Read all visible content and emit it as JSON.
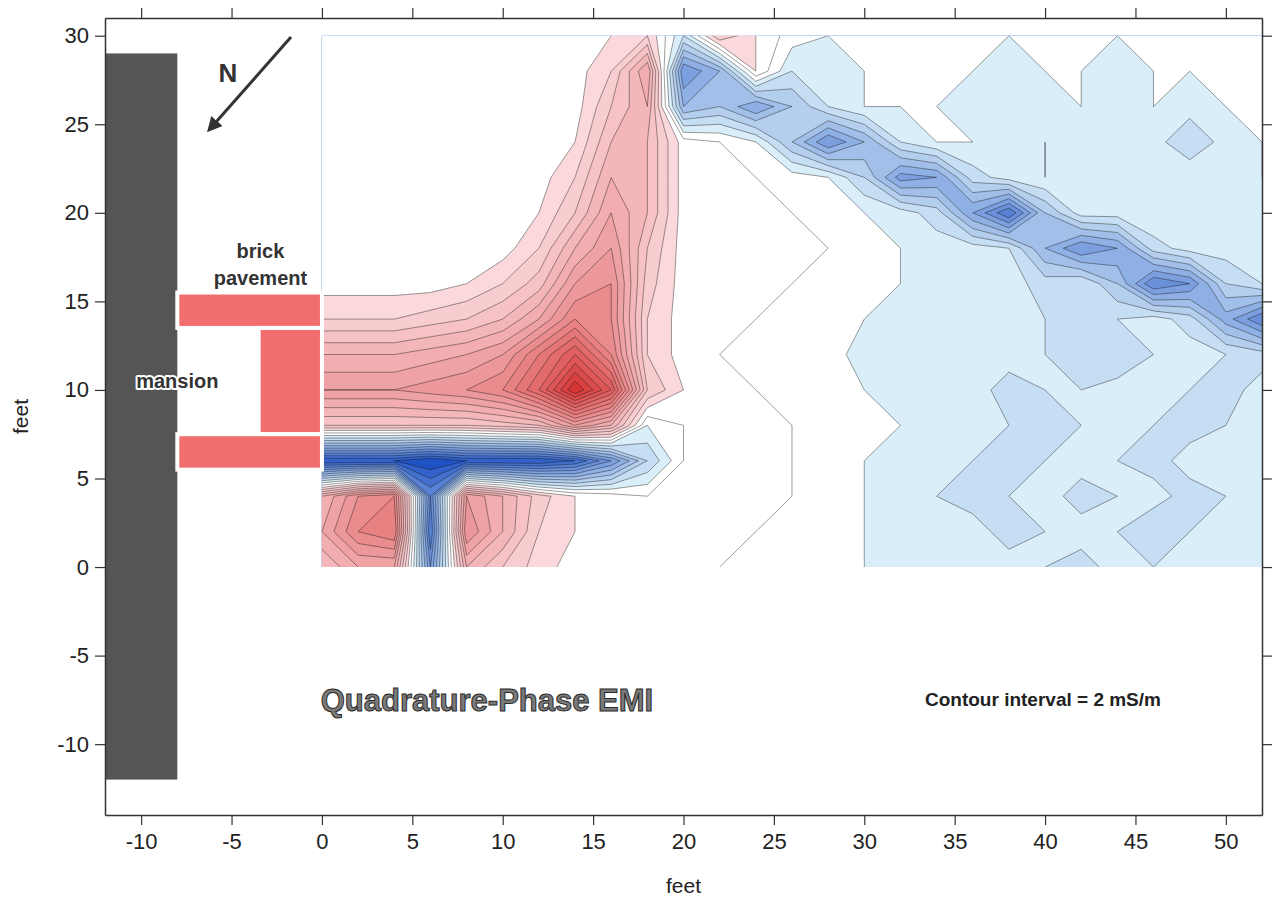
{
  "chart_data": {
    "type": "contour",
    "title": "Quadrature-Phase EMI",
    "annotations": [
      "Contour interval = 2 mS/m"
    ],
    "north_label": "N",
    "x_label": "feet",
    "y_label": "feet",
    "xlim": [
      -12,
      52
    ],
    "ylim": [
      -14,
      31
    ],
    "xticks": [
      -10,
      -5,
      0,
      5,
      10,
      15,
      20,
      25,
      30,
      35,
      40,
      45,
      50
    ],
    "yticks": [
      -10,
      -5,
      0,
      5,
      10,
      15,
      20,
      25,
      30
    ],
    "contour_interval": 2,
    "x": [
      0,
      2,
      4,
      6,
      8,
      10,
      12,
      14,
      16,
      18,
      20,
      22,
      24,
      26,
      28,
      30,
      32,
      34,
      36,
      38,
      40,
      42,
      44,
      46,
      48,
      50,
      52
    ],
    "y": [
      0,
      2,
      4,
      6,
      8,
      10,
      12,
      14,
      16,
      18,
      20,
      22,
      24,
      26,
      28,
      30
    ],
    "z": [
      [
        8,
        12,
        12,
        -14,
        10,
        6,
        3,
        1,
        0,
        0,
        1,
        0,
        -1,
        0,
        -1,
        -2,
        -3,
        -2,
        -4,
        -3,
        -4,
        -5,
        -3,
        -4,
        -3,
        -4,
        -3
      ],
      [
        12,
        18,
        20,
        -18,
        16,
        10,
        4,
        2,
        1,
        0,
        0,
        1,
        0,
        -1,
        -1,
        -2,
        -3,
        -4,
        -3,
        -5,
        -4,
        -3,
        -4,
        -6,
        -4,
        -3,
        -4
      ],
      [
        10,
        16,
        18,
        -16,
        14,
        10,
        5,
        2,
        1,
        0,
        0,
        0,
        1,
        0,
        -1,
        -2,
        -3,
        -4,
        -5,
        -4,
        -3,
        -5,
        -4,
        -3,
        -5,
        -4,
        -3
      ],
      [
        -22,
        -22,
        -22,
        -24,
        -22,
        -22,
        -22,
        -20,
        -14,
        -6,
        0,
        1,
        0,
        0,
        -1,
        -2,
        -3,
        -3,
        -4,
        -5,
        -4,
        -3,
        -4,
        -5,
        -3,
        -4,
        -3
      ],
      [
        6,
        6,
        6,
        6,
        6,
        7,
        8,
        14,
        10,
        -2,
        0,
        0,
        1,
        0,
        -1,
        -2,
        -2,
        -4,
        -3,
        -4,
        -6,
        -4,
        -3,
        -4,
        -5,
        -4,
        -3
      ],
      [
        14,
        14,
        14,
        15,
        16,
        18,
        24,
        34,
        26,
        6,
        2,
        0,
        0,
        -1,
        -1,
        -2,
        -3,
        -4,
        -3,
        -5,
        -4,
        -4,
        -3,
        -3,
        -4,
        -5,
        -3
      ],
      [
        10,
        10,
        10,
        11,
        12,
        14,
        20,
        26,
        18,
        4,
        1,
        0,
        -1,
        0,
        -1,
        -3,
        -4,
        -3,
        -4,
        -3,
        -4,
        -5,
        -6,
        -4,
        -3,
        -4,
        -5
      ],
      [
        4,
        4,
        4,
        5,
        6,
        8,
        12,
        18,
        16,
        4,
        1,
        0,
        0,
        -1,
        0,
        -2,
        -3,
        -4,
        -3,
        -4,
        -4,
        -5,
        -4,
        -3,
        -5,
        -11,
        -16
      ],
      [
        1,
        1,
        1,
        1,
        2,
        4,
        7,
        14,
        16,
        5,
        1,
        0,
        0,
        0,
        -1,
        -1,
        -2,
        -3,
        -4,
        -3,
        -5,
        -4,
        -8,
        -16,
        -14,
        -6,
        -4
      ],
      [
        0,
        0,
        0,
        0,
        0,
        1,
        4,
        10,
        14,
        6,
        1,
        0,
        1,
        0,
        0,
        -1,
        -2,
        -3,
        -3,
        -4,
        -10,
        -14,
        -12,
        -5,
        -3,
        -3,
        -4
      ],
      [
        0,
        0,
        0,
        0,
        0,
        0,
        2,
        6,
        12,
        8,
        1,
        0,
        0,
        0,
        -1,
        -2,
        -3,
        -5,
        -12,
        -18,
        -8,
        -3,
        -3,
        -2,
        -3,
        -2,
        -3
      ],
      [
        0,
        0,
        0,
        0,
        0,
        0,
        1,
        4,
        10,
        8,
        1,
        0,
        0,
        -1,
        -2,
        -6,
        -13,
        -12,
        -5,
        -3,
        -2,
        -3,
        -2,
        -3,
        -2,
        -3,
        -2
      ],
      [
        0,
        0,
        0,
        0,
        0,
        0,
        0,
        2,
        8,
        8,
        1,
        0,
        -2,
        -8,
        -14,
        -10,
        -4,
        -2,
        -2,
        -3,
        -2,
        -3,
        -4,
        -3,
        -6,
        -3,
        -2
      ],
      [
        0,
        0,
        0,
        0,
        0,
        0,
        0,
        1,
        6,
        10,
        -10,
        -8,
        -12,
        -8,
        -4,
        -2,
        -2,
        -2,
        -3,
        -2,
        -3,
        -2,
        -3,
        -2,
        -3,
        -2,
        -2
      ],
      [
        0,
        0,
        0,
        0,
        0,
        0,
        0,
        1,
        4,
        12,
        -14,
        -10,
        2,
        -4,
        -3,
        -2,
        -2,
        -2,
        -2,
        -3,
        -2,
        -2,
        -3,
        -2,
        -2,
        -2,
        -2
      ],
      [
        0,
        0,
        0,
        0,
        0,
        0,
        0,
        1,
        2,
        4,
        -4,
        6,
        2,
        -1,
        -2,
        -1,
        -2,
        -1,
        -2,
        -2,
        -1,
        -2,
        -2,
        -1,
        -2,
        -1,
        -2
      ]
    ],
    "features": [
      {
        "label": "mansion",
        "color": "#555555",
        "rects": [
          {
            "x": [
              -12,
              -8
            ],
            "y": [
              -12,
              29
            ]
          }
        ]
      },
      {
        "label": "brick pavement",
        "color": "#f26d6d",
        "rects": [
          {
            "x": [
              -8,
              0
            ],
            "y": [
              13.5,
              15.5
            ]
          },
          {
            "x": [
              -3.5,
              0
            ],
            "y": [
              7.5,
              13.5
            ]
          },
          {
            "x": [
              -8,
              0
            ],
            "y": [
              5.5,
              7.5
            ]
          }
        ]
      }
    ]
  }
}
